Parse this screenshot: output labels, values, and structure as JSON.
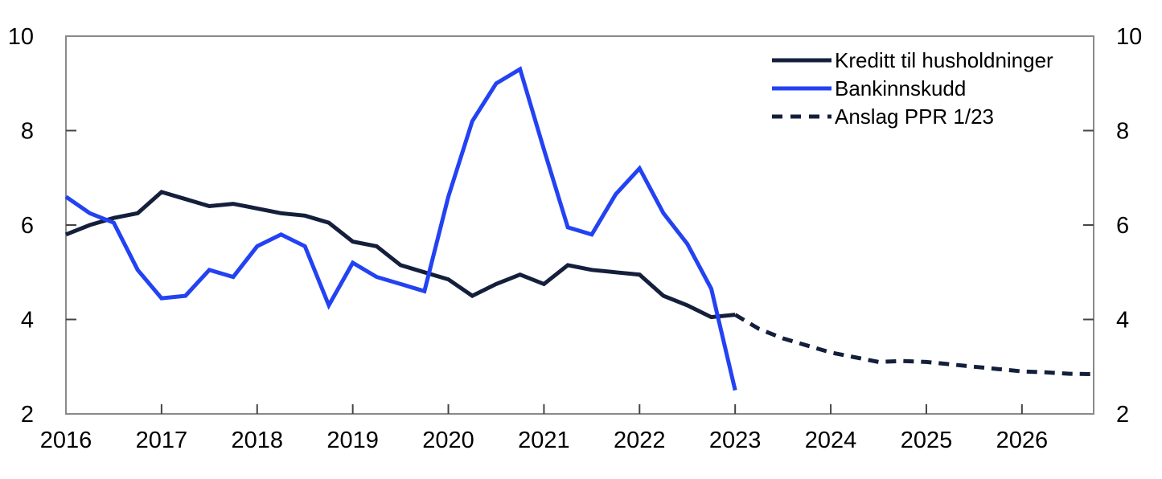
{
  "chart_data": {
    "type": "line",
    "title": "",
    "frequency": "quarterly",
    "grid": false,
    "legend_position": "top-right-inside",
    "xlim": [
      2016,
      2026.75
    ],
    "ylim": [
      2,
      10
    ],
    "x_tick_years": [
      2016,
      2017,
      2018,
      2019,
      2020,
      2021,
      2022,
      2023,
      2024,
      2025,
      2026
    ],
    "x_tick_labels": [
      "2016",
      "2017",
      "2018",
      "2019",
      "2020",
      "2021",
      "2022",
      "2023",
      "2024",
      "2025",
      "2026"
    ],
    "y_ticks": [
      2,
      4,
      6,
      8,
      10
    ],
    "y_tick_labels": [
      "2",
      "4",
      "6",
      "8",
      "10"
    ],
    "y_axis_sides": [
      "left",
      "right"
    ],
    "series": [
      {
        "name": "Kreditt til husholdninger",
        "color": "#141f3c",
        "style": "solid",
        "x_start": 2016.0,
        "x_step": 0.25,
        "x_end": 2023.0,
        "values": [
          5.8,
          6.0,
          6.15,
          6.25,
          6.7,
          6.55,
          6.4,
          6.45,
          6.35,
          6.25,
          6.2,
          6.05,
          5.65,
          5.55,
          5.15,
          5.0,
          4.85,
          4.5,
          4.75,
          4.95,
          4.75,
          5.15,
          5.05,
          5.0,
          4.95,
          4.5,
          4.3,
          4.05,
          4.1
        ]
      },
      {
        "name": "Bankinnskudd",
        "color": "#2342f2",
        "style": "solid",
        "x_start": 2016.0,
        "x_step": 0.25,
        "x_end": 2023.0,
        "values": [
          6.6,
          6.25,
          6.05,
          5.05,
          4.45,
          4.5,
          5.05,
          4.9,
          5.55,
          5.8,
          5.55,
          4.3,
          5.2,
          4.9,
          4.75,
          4.6,
          6.6,
          8.2,
          9.0,
          9.3,
          7.6,
          5.95,
          5.8,
          6.65,
          7.2,
          6.25,
          5.6,
          4.65,
          2.5
        ]
      },
      {
        "name": "Anslag PPR 1/23",
        "color": "#141f3c",
        "style": "dashed",
        "x_start": 2023.0,
        "x_step": 0.25,
        "x_end": 2026.75,
        "values": [
          4.1,
          3.8,
          3.6,
          3.45,
          3.3,
          3.2,
          3.1,
          3.12,
          3.1,
          3.05,
          3.0,
          2.95,
          2.9,
          2.88,
          2.85,
          2.84
        ]
      }
    ]
  },
  "legend": {
    "items": [
      {
        "label": "Kreditt til husholdninger",
        "color": "#141f3c",
        "style": "solid"
      },
      {
        "label": "Bankinnskudd",
        "color": "#2342f2",
        "style": "solid"
      },
      {
        "label": "Anslag PPR 1/23",
        "color": "#141f3c",
        "style": "dashed"
      }
    ]
  },
  "style": {
    "frame_color": "#8a8a8a",
    "tick_color": "#444444",
    "label_color": "#000000",
    "background": "#ffffff",
    "line_width": 5,
    "dash_pattern": "13 9"
  }
}
